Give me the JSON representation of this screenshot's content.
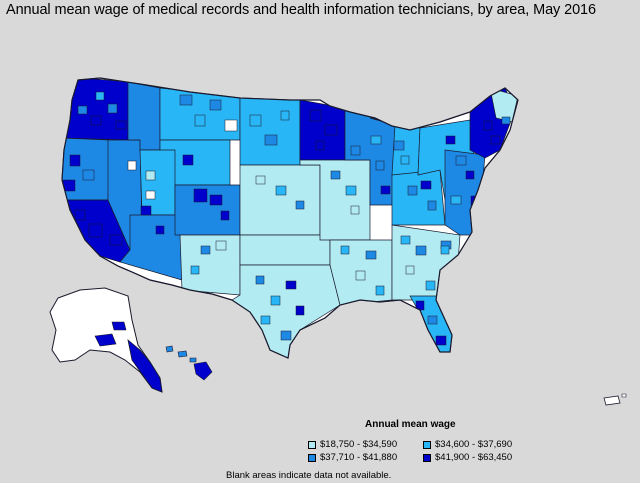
{
  "title": "Annual mean wage of medical records and health information technicians, by area, May 2016",
  "legend": {
    "title": "Annual mean wage",
    "items": [
      {
        "label": "$18,750 - $34,590",
        "color": "#b2ebf2"
      },
      {
        "label": "$34,600 - $37,690",
        "color": "#29b6f6"
      },
      {
        "label": "$37,710 - $41,880",
        "color": "#1e88e5"
      },
      {
        "label": "$41,900 - $63,450",
        "color": "#0000cc"
      }
    ]
  },
  "note": "Blank areas indicate data not available.",
  "colors": {
    "background": "#d9d9d9",
    "no_data": "#ffffff",
    "border": "#1a1a2e"
  },
  "regions": [
    {
      "name": "pacific-northwest",
      "level": 3
    },
    {
      "name": "northern-california",
      "level": 2
    },
    {
      "name": "california-coast",
      "level": 3
    },
    {
      "name": "nevada",
      "level": 2
    },
    {
      "name": "idaho",
      "level": 2
    },
    {
      "name": "montana",
      "level": 1
    },
    {
      "name": "wyoming",
      "level": 1
    },
    {
      "name": "utah",
      "level": 1
    },
    {
      "name": "arizona",
      "level": 2
    },
    {
      "name": "colorado",
      "level": 2
    },
    {
      "name": "new-mexico",
      "level": 0
    },
    {
      "name": "dakotas",
      "level": 1
    },
    {
      "name": "nebraska-kansas",
      "level": 0
    },
    {
      "name": "oklahoma",
      "level": 0
    },
    {
      "name": "texas",
      "level": 0
    },
    {
      "name": "minnesota",
      "level": 3
    },
    {
      "name": "iowa-missouri",
      "level": 0
    },
    {
      "name": "wisconsin-illinois",
      "level": 2
    },
    {
      "name": "michigan",
      "level": 1
    },
    {
      "name": "ohio-valley",
      "level": 1
    },
    {
      "name": "south-central",
      "level": 0
    },
    {
      "name": "southeast",
      "level": 0
    },
    {
      "name": "appalachia",
      "level": 1
    },
    {
      "name": "mid-atlantic",
      "level": 2
    },
    {
      "name": "new-england",
      "level": 3
    },
    {
      "name": "maine",
      "level": 0
    },
    {
      "name": "florida",
      "level": 1
    },
    {
      "name": "alaska",
      "level": -1
    },
    {
      "name": "alaska-south",
      "level": 3
    },
    {
      "name": "hawaii",
      "level": 3
    },
    {
      "name": "puerto-rico",
      "level": -1
    }
  ]
}
